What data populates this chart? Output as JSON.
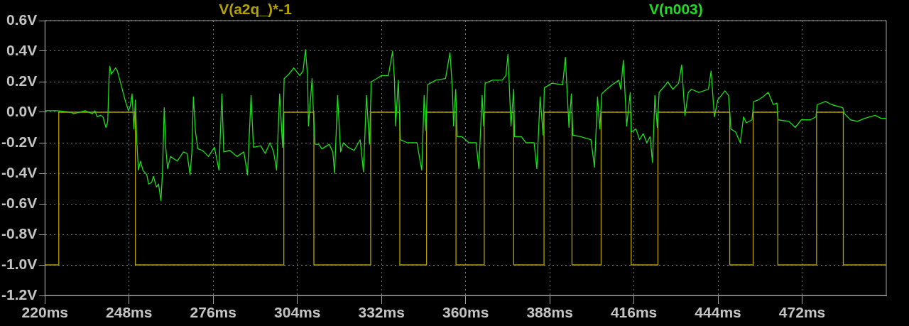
{
  "chart_data": {
    "type": "line",
    "xlim": [
      220,
      500
    ],
    "xticks": [
      {
        "value": 220,
        "label": "220ms"
      },
      {
        "value": 248,
        "label": "248ms"
      },
      {
        "value": 276,
        "label": "276ms"
      },
      {
        "value": 304,
        "label": "304ms"
      },
      {
        "value": 332,
        "label": "332ms"
      },
      {
        "value": 360,
        "label": "360ms"
      },
      {
        "value": 388,
        "label": "388ms"
      },
      {
        "value": 416,
        "label": "416ms"
      },
      {
        "value": 444,
        "label": "444ms"
      },
      {
        "value": 472,
        "label": "472ms"
      }
    ],
    "ylim": [
      -1.2,
      0.6
    ],
    "yticks": [
      {
        "value": 0.6,
        "label": "0.6V"
      },
      {
        "value": 0.4,
        "label": "0.4V"
      },
      {
        "value": 0.2,
        "label": "0.2V"
      },
      {
        "value": 0,
        "label": "0.0V"
      },
      {
        "value": -0.2,
        "label": "-0.2V"
      },
      {
        "value": -0.4,
        "label": "-0.4V"
      },
      {
        "value": -0.6,
        "label": "-0.6V"
      },
      {
        "value": -0.8,
        "label": "-0.8V"
      },
      {
        "value": -1.0,
        "label": "-1.0V"
      },
      {
        "value": -1.2,
        "label": "-1.2V"
      }
    ],
    "grid": true,
    "legend": "top",
    "series": [
      {
        "name": "V(a2q_)*-1",
        "type": "step",
        "color": "#b4a000",
        "x": [
          220,
          224.6,
          250.1,
          299.5,
          309.5,
          328.4,
          338.1,
          347.0,
          356.8,
          366.2,
          376.0,
          386.1,
          395.4,
          405.1,
          415.1,
          424.0,
          447.9,
          455.7,
          463.9,
          476.8,
          485.7,
          500
        ],
        "values": [
          -1,
          0,
          -1,
          0,
          -1,
          0,
          -1,
          0,
          -1,
          0,
          -1,
          0,
          -1,
          0,
          -1,
          0,
          -1,
          0,
          -1,
          0,
          -1,
          -1
        ]
      },
      {
        "name": "V(n003)",
        "color": "#1edc1e",
        "x": [
          220.0,
          224.0,
          228.7,
          229.5,
          233.4,
          235.8,
          236.6,
          237.4,
          238.5,
          239.3,
          240.3,
          240.9,
          241.3,
          241.6,
          242.1,
          243.5,
          244.1,
          245.2,
          246.8,
          247.8,
          248.4,
          249.0,
          249.6,
          250.1,
          250.6,
          251.1,
          251.8,
          252.6,
          253.9,
          254.5,
          255.5,
          256.1,
          257.1,
          257.8,
          258.6,
          259.1,
          259.7,
          260.2,
          260.8,
          261.8,
          264.0,
          266.1,
          267.3,
          268.3,
          268.9,
          269.4,
          270.1,
          270.9,
          272.4,
          274.4,
          276.4,
          277.9,
          278.9,
          279.5,
          281.5,
          283.9,
          286.2,
          287.4,
          288.6,
          289.4,
          291.8,
          293.3,
          294.9,
          296.1,
          297.1,
          298.1,
          299.1,
          299.6,
          301.2,
          302.8,
          304.8,
          305.9,
          306.7,
          307.4,
          307.7,
          308.9,
          309.3,
          309.9,
          311.1,
          312.2,
          314.6,
          315.8,
          316.4,
          317.4,
          318.4,
          319.3,
          320.9,
          322.9,
          324.9,
          326.0,
          327.0,
          328.0,
          328.6,
          330.4,
          332.0,
          334.3,
          335.7,
          336.3,
          336.7,
          337.6,
          338.3,
          340.6,
          343.8,
          345.4,
          346.2,
          346.8,
          347.3,
          350.1,
          353.3,
          354.8,
          355.6,
          356.0,
          356.7,
          357.2,
          358.8,
          361.1,
          363.5,
          364.4,
          365.5,
          366.0,
          366.5,
          369.0,
          372.2,
          373.4,
          374.1,
          375.1,
          376.0,
          376.3,
          378.5,
          380.1,
          382.8,
          383.7,
          384.8,
          385.8,
          386.2,
          388.7,
          392.3,
          393.2,
          394.4,
          395.2,
          395.7,
          398.2,
          401.7,
          402.9,
          403.9,
          404.7,
          405.3,
          406.9,
          408.8,
          411.0,
          411.6,
          412.5,
          413.6,
          414.8,
          415.1,
          416.7,
          417.9,
          419.1,
          420.3,
          421.4,
          422.2,
          423.0,
          423.8,
          424.4,
          426.6,
          427.2,
          429.0,
          430.9,
          431.9,
          433.0,
          434.1,
          435.2,
          437.6,
          440.8,
          441.7,
          442.8,
          443.9,
          446.3,
          447.5,
          448.3,
          449.9,
          451.4,
          452.5,
          453.4,
          455.3,
          455.9,
          457.3,
          458.9,
          460.7,
          462.4,
          463.6,
          464.0,
          467.6,
          469.7,
          471.7,
          474.7,
          476.6,
          477.0,
          479.8,
          481.8,
          485.5,
          486.1,
          488.1,
          490.4,
          492.8,
          496.3,
          498.3,
          500.0
        ],
        "values": [
          0.01,
          0.01,
          0.0,
          -0.01,
          0.01,
          -0.01,
          0.01,
          -0.03,
          -0.02,
          -0.03,
          -0.1,
          -0.06,
          0.21,
          0.3,
          0.25,
          0.29,
          0.27,
          0.19,
          0.07,
          0.01,
          0.04,
          0.12,
          -0.11,
          0.08,
          -0.2,
          -0.38,
          -0.32,
          -0.38,
          -0.41,
          -0.47,
          -0.46,
          -0.42,
          -0.49,
          -0.47,
          -0.58,
          -0.4,
          0.03,
          -0.23,
          -0.37,
          -0.29,
          -0.32,
          -0.26,
          -0.27,
          -0.41,
          -0.26,
          0.1,
          -0.13,
          -0.24,
          -0.25,
          -0.29,
          -0.23,
          -0.38,
          0.12,
          -0.26,
          -0.25,
          -0.29,
          -0.26,
          -0.41,
          0.11,
          -0.23,
          -0.22,
          -0.27,
          -0.2,
          -0.26,
          -0.38,
          0.12,
          -0.23,
          0.22,
          0.25,
          0.29,
          0.24,
          0.27,
          0.41,
          0.24,
          -0.09,
          0.22,
          0.02,
          -0.21,
          -0.21,
          -0.24,
          -0.21,
          -0.26,
          -0.4,
          0.11,
          -0.26,
          -0.2,
          -0.23,
          -0.25,
          -0.18,
          -0.39,
          0.11,
          -0.21,
          0.2,
          0.22,
          0.24,
          0.24,
          0.4,
          0.22,
          -0.09,
          0.21,
          -0.18,
          -0.2,
          -0.2,
          -0.38,
          0.11,
          -0.12,
          0.18,
          0.21,
          0.22,
          0.39,
          0.15,
          -0.09,
          0.15,
          -0.16,
          -0.16,
          -0.2,
          -0.2,
          -0.37,
          0.11,
          -0.09,
          0.19,
          0.21,
          0.21,
          0.24,
          0.38,
          -0.09,
          0.15,
          -0.16,
          -0.16,
          -0.2,
          -0.2,
          -0.37,
          0.1,
          -0.15,
          0.16,
          0.19,
          0.18,
          0.36,
          -0.1,
          0.12,
          -0.15,
          -0.16,
          -0.18,
          -0.36,
          0.1,
          -0.11,
          0.12,
          0.15,
          0.18,
          0.21,
          0.15,
          0.34,
          -0.09,
          0.13,
          -0.13,
          -0.11,
          -0.18,
          -0.14,
          -0.2,
          -0.16,
          -0.33,
          0.11,
          -0.1,
          0.13,
          0.18,
          0.2,
          0.15,
          0.19,
          0.31,
          -0.02,
          0.13,
          0.15,
          0.13,
          0.15,
          0.27,
          -0.03,
          0.08,
          0.14,
          0.11,
          -0.11,
          -0.13,
          -0.2,
          -0.03,
          -0.07,
          -0.05,
          0.07,
          0.08,
          0.1,
          0.13,
          0.05,
          0.06,
          -0.05,
          -0.06,
          -0.1,
          -0.05,
          -0.05,
          -0.03,
          0.05,
          0.07,
          0.05,
          0.03,
          -0.01,
          -0.05,
          -0.06,
          -0.04,
          -0.02,
          -0.04,
          -0.04
        ]
      }
    ]
  }
}
